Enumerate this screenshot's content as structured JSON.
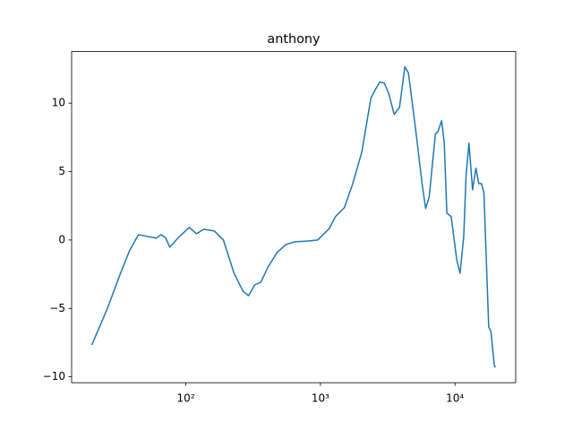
{
  "chart_data": {
    "type": "line",
    "title": "anthony",
    "color": "#1f77b4",
    "xscale": "log",
    "x": [
      20,
      26,
      32.7,
      38.1,
      44.4,
      51.8,
      60.4,
      65.2,
      70.3,
      75.9,
      88.5,
      106,
      120,
      136,
      163,
      190,
      228,
      266,
      292,
      325,
      361,
      408,
      476,
      555,
      647,
      819,
      955,
      1165,
      1290,
      1505,
      1740,
      2030,
      2370,
      2560,
      2760,
      2980,
      3220,
      3530,
      3870,
      4240,
      4510,
      5100,
      5690,
      6050,
      6430,
      7150,
      7480,
      7950,
      8320,
      8700,
      9370,
      10300,
      10900,
      11600,
      12100,
      12700,
      13500,
      14300,
      15000,
      15700,
      16400,
      17800,
      18500,
      19600,
      20000
    ],
    "values": [
      -7.67,
      -5.05,
      -2.43,
      -0.79,
      0.39,
      0.26,
      0.13,
      0.39,
      0.2,
      -0.52,
      0.2,
      0.92,
      0.46,
      0.79,
      0.66,
      0,
      -2.43,
      -3.74,
      -4.07,
      -3.28,
      -3.08,
      -1.97,
      -0.92,
      -0.33,
      -0.13,
      -0.07,
      0,
      0.85,
      1.7,
      2.36,
      4.13,
      6.43,
      10.36,
      11.0,
      11.54,
      11.48,
      10.7,
      9.18,
      9.7,
      12.66,
      12.2,
      8.07,
      4.13,
      2.3,
      3.15,
      7.74,
      7.93,
      8.72,
      7.08,
      1.97,
      1.7,
      -1.44,
      -2.43,
      0.2,
      4.79,
      7.08,
      3.67,
      5.25,
      4.13,
      4.13,
      3.48,
      -6.36,
      -6.69,
      -9.18,
      -9.31
    ],
    "xlim": [
      14.16,
      28251
    ],
    "ylim": [
      -10.43,
      13.77
    ],
    "xticks": [
      {
        "value": 100,
        "label": "10²"
      },
      {
        "value": 1000,
        "label": "10³"
      },
      {
        "value": 10000,
        "label": "10⁴"
      }
    ],
    "yticks": [
      {
        "value": -10,
        "label": "−10"
      },
      {
        "value": -5,
        "label": "−5"
      },
      0,
      5,
      10
    ]
  }
}
